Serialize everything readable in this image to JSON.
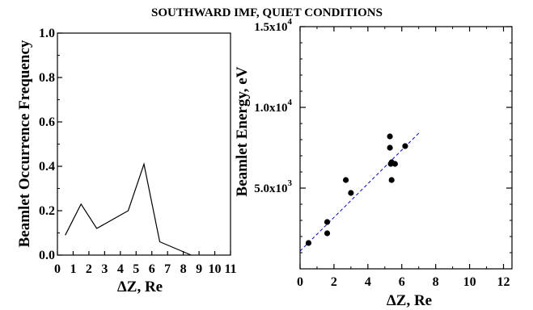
{
  "figure": {
    "title": "SOUTHWARD IMF, QUIET CONDITIONS"
  },
  "chart_data": [
    {
      "type": "line",
      "title": "",
      "xlabel": "ΔZ, Re",
      "ylabel": "Beamlet Occurrence Frequency",
      "xlim": [
        0,
        11
      ],
      "ylim": [
        0,
        1.0
      ],
      "x_ticks": [
        "0",
        "1",
        "2",
        "3",
        "4",
        "5",
        "6",
        "7",
        "8",
        "9",
        "10",
        "11"
      ],
      "y_ticks": [
        "0.0",
        "0.2",
        "0.4",
        "0.6",
        "0.8",
        "1.0"
      ],
      "grid": false,
      "series": [
        {
          "color": "#000000",
          "x": [
            0.5,
            1.5,
            2.5,
            4.5,
            5.5,
            6.5,
            8.5
          ],
          "y": [
            0.09,
            0.23,
            0.12,
            0.2,
            0.41,
            0.06,
            0.0
          ]
        }
      ]
    },
    {
      "type": "scatter",
      "title": "",
      "xlabel": "ΔZ, Re",
      "ylabel": "Beamlet Energy, eV",
      "xlim": [
        0,
        12.5
      ],
      "ylim": [
        0,
        15000
      ],
      "x_ticks": [
        "0",
        "2",
        "4",
        "6",
        "8",
        "10",
        "12"
      ],
      "y_ticks": [
        {
          "mant": "5.0x10",
          "exp": "3",
          "value": 5000
        },
        {
          "mant": "1.0x10",
          "exp": "4",
          "value": 10000
        },
        {
          "mant": "1.5x10",
          "exp": "4",
          "value": 15000
        }
      ],
      "grid": false,
      "points": {
        "color": "#000000",
        "x": [
          0.5,
          1.6,
          1.6,
          2.7,
          3.0,
          5.3,
          5.3,
          5.4,
          5.35,
          5.4,
          5.6,
          6.2
        ],
        "y": [
          1600,
          2200,
          2900,
          5500,
          4700,
          8200,
          7500,
          6600,
          6500,
          5500,
          6500,
          7600
        ]
      },
      "fit_line": {
        "color": "#0000cc",
        "x": [
          0,
          7
        ],
        "y": [
          1100,
          8400
        ]
      }
    }
  ]
}
